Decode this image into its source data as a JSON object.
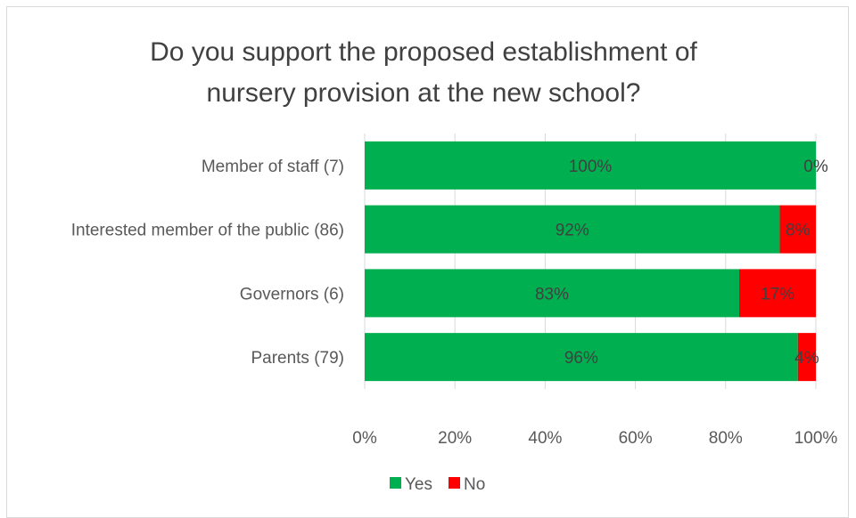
{
  "chart_data": {
    "type": "bar",
    "orientation": "horizontal",
    "stacked": true,
    "percent": true,
    "title": "Do you support the proposed establishment of nursery provision at the new school?",
    "title_lines": [
      "Do you support the proposed establishment of",
      "nursery provision at the new school?"
    ],
    "categories": [
      "Member of staff (7)",
      "Interested member of the public (86)",
      "Governors (6)",
      "Parents (79)"
    ],
    "series": [
      {
        "name": "Yes",
        "color": "#00b050",
        "values": [
          100,
          92,
          83,
          96
        ],
        "labels": [
          "100%",
          "92%",
          "83%",
          "96%"
        ]
      },
      {
        "name": "No",
        "color": "#ff0000",
        "values": [
          0,
          8,
          17,
          4
        ],
        "labels": [
          "0%",
          "8%",
          "17%",
          "4%"
        ]
      }
    ],
    "xlim": [
      0,
      100
    ],
    "xticks": [
      0,
      20,
      40,
      60,
      80,
      100
    ],
    "xtick_labels": [
      "0%",
      "20%",
      "40%",
      "60%",
      "80%",
      "100%"
    ],
    "grid": true,
    "legend": "bottom",
    "colors": {
      "yes": "#00b050",
      "no": "#ff0000",
      "text": "#595959",
      "title": "#404040",
      "label_text": "#404040",
      "grid": "#d9d9d9"
    }
  }
}
